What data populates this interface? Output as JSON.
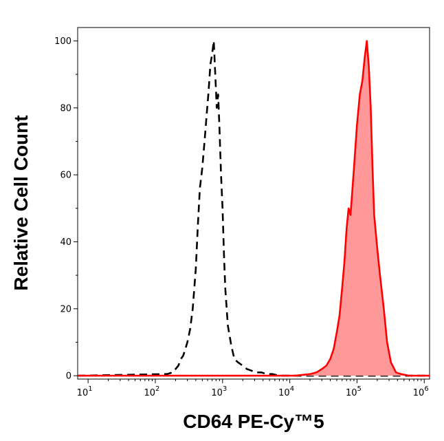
{
  "chart_data": {
    "type": "area",
    "xlabel": "CD64 PE-Cy™5",
    "ylabel": "Relative Cell Count",
    "x_scale": "log",
    "xlim": [
      7,
      1200000
    ],
    "ylim": [
      -1,
      104
    ],
    "x_ticks": [
      {
        "value": 10,
        "base": "10",
        "exp": "1"
      },
      {
        "value": 100,
        "base": "10",
        "exp": "2"
      },
      {
        "value": 1000,
        "base": "10",
        "exp": "3"
      },
      {
        "value": 10000,
        "base": "10",
        "exp": "4"
      },
      {
        "value": 100000,
        "base": "10",
        "exp": "5"
      },
      {
        "value": 1000000,
        "base": "10",
        "exp": "6"
      }
    ],
    "y_ticks": [
      "0",
      "20",
      "40",
      "60",
      "80",
      "100"
    ],
    "y_tick_values": [
      0,
      20,
      40,
      60,
      80,
      100
    ],
    "grid": false,
    "series": [
      {
        "style": "dashed",
        "color": "#000000",
        "filled": false,
        "x": [
          7,
          150,
          180,
          200,
          220,
          240,
          260,
          280,
          300,
          330,
          360,
          400,
          430,
          460,
          500,
          540,
          580,
          620,
          660,
          700,
          740,
          780,
          820,
          860,
          900,
          950,
          1000,
          1050,
          1100,
          1200,
          1350,
          1500,
          1700,
          2000,
          2300,
          2700,
          3200,
          3800,
          4500,
          5500,
          7000,
          9000,
          12000,
          1200000
        ],
        "y": [
          0,
          0.5,
          1,
          2,
          3,
          5,
          6,
          8,
          10,
          14,
          20,
          32,
          45,
          56,
          62,
          70,
          78,
          85,
          93,
          96,
          100,
          90,
          80,
          84,
          74,
          60,
          50,
          36,
          26,
          15,
          9,
          5,
          4,
          3,
          2,
          1.5,
          1,
          1,
          0.5,
          0.5,
          0,
          0,
          0,
          0
        ]
      },
      {
        "style": "solid",
        "color": "#ff0000",
        "fill": "#ff9999",
        "filled": true,
        "x": [
          7,
          12000,
          20000,
          25000,
          30000,
          35000,
          40000,
          45000,
          50000,
          55000,
          60000,
          65000,
          70000,
          75000,
          80000,
          90000,
          100000,
          110000,
          120000,
          130000,
          140000,
          150000,
          160000,
          170000,
          180000,
          200000,
          220000,
          250000,
          280000,
          320000,
          380000,
          450000,
          600000,
          1200000
        ],
        "y": [
          0,
          0,
          0.5,
          1,
          2,
          3,
          5,
          8,
          13,
          18,
          26,
          34,
          44,
          50,
          48,
          62,
          75,
          84,
          88,
          95,
          100,
          92,
          80,
          62,
          48,
          38,
          30,
          20,
          10,
          4,
          1,
          0.5,
          0,
          0
        ]
      }
    ]
  }
}
